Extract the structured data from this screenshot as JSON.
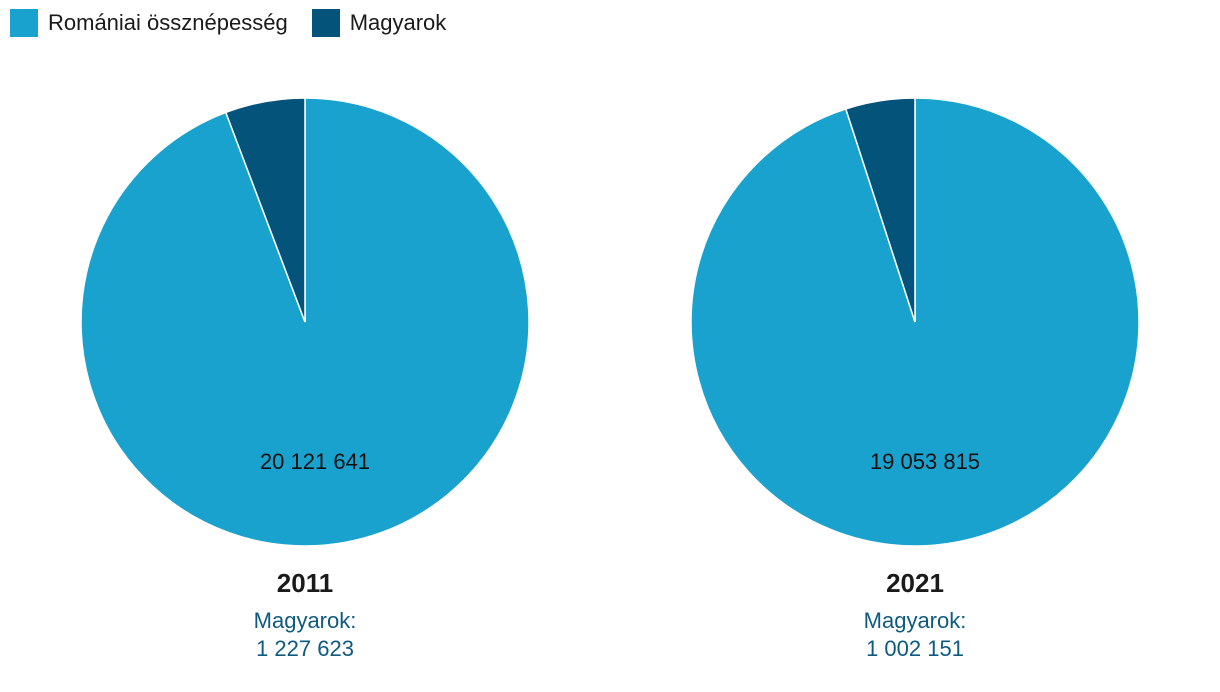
{
  "legend": [
    {
      "label": "Romániai össznépesség",
      "color": "#1aa2ce"
    },
    {
      "label": "Magyarok",
      "color": "#03537a"
    }
  ],
  "caption_color": "#0e5a80",
  "chart_data": [
    {
      "type": "pie",
      "title": "2011",
      "categories": [
        "Romániai össznépesség",
        "Magyarok"
      ],
      "values": [
        20121641,
        1227623
      ],
      "slice_label": "20 121 641",
      "caption_label": "Magyarok:",
      "caption_value": "1 227 623"
    },
    {
      "type": "pie",
      "title": "2021",
      "categories": [
        "Romániai össznépesség",
        "Magyarok"
      ],
      "values": [
        19053815,
        1002151
      ],
      "slice_label": "19 053 815",
      "caption_label": "Magyarok:",
      "caption_value": "1 002 151"
    }
  ]
}
